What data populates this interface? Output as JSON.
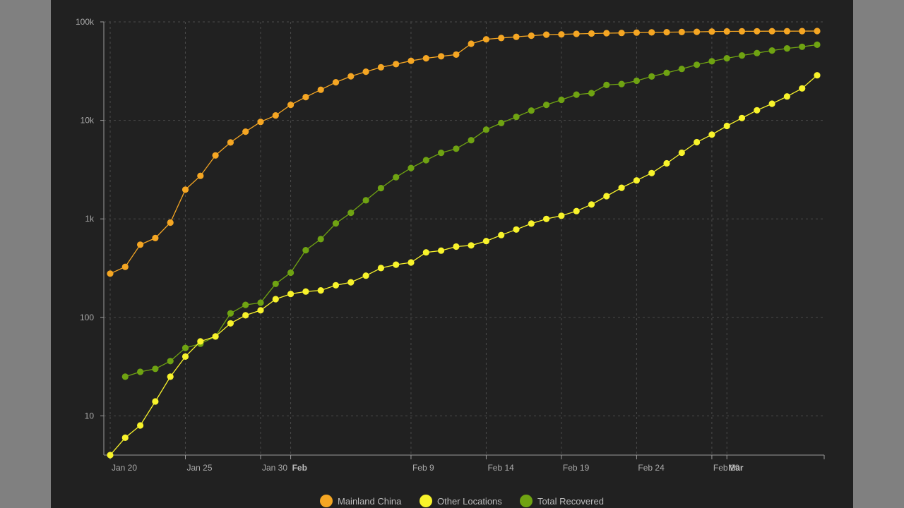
{
  "chart_data": {
    "type": "line",
    "title": "",
    "xlabel": "",
    "ylabel": "",
    "y_scale": "log",
    "ylim": [
      4,
      100000
    ],
    "grid": true,
    "legend_position": "bottom-center",
    "x_start": "2020-01-20",
    "x_end": "2020-03-07",
    "y_ticks": [
      {
        "value": 10,
        "label": "10"
      },
      {
        "value": 100,
        "label": "100"
      },
      {
        "value": 1000,
        "label": "1k"
      },
      {
        "value": 10000,
        "label": "10k"
      },
      {
        "value": 100000,
        "label": "100k"
      }
    ],
    "x_ticks": [
      {
        "date": "2020-01-20",
        "label": "Jan 20",
        "bold": false
      },
      {
        "date": "2020-01-25",
        "label": "Jan 25",
        "bold": false
      },
      {
        "date": "2020-01-30",
        "label": "Jan 30",
        "bold": false
      },
      {
        "date": "2020-02-01",
        "label": "Feb",
        "bold": true
      },
      {
        "date": "2020-02-09",
        "label": "Feb 9",
        "bold": false
      },
      {
        "date": "2020-02-14",
        "label": "Feb 14",
        "bold": false
      },
      {
        "date": "2020-02-19",
        "label": "Feb 19",
        "bold": false
      },
      {
        "date": "2020-02-24",
        "label": "Feb 24",
        "bold": false
      },
      {
        "date": "2020-02-29",
        "label": "Feb 29",
        "bold": false
      },
      {
        "date": "2020-03-01",
        "label": "Mar",
        "bold": true
      }
    ],
    "series": [
      {
        "name": "Mainland China",
        "color": "#f5a623",
        "dates": [
          "2020-01-20",
          "2020-01-21",
          "2020-01-22",
          "2020-01-23",
          "2020-01-24",
          "2020-01-25",
          "2020-01-26",
          "2020-01-27",
          "2020-01-28",
          "2020-01-29",
          "2020-01-30",
          "2020-01-31",
          "2020-02-01",
          "2020-02-02",
          "2020-02-03",
          "2020-02-04",
          "2020-02-05",
          "2020-02-06",
          "2020-02-07",
          "2020-02-08",
          "2020-02-09",
          "2020-02-10",
          "2020-02-11",
          "2020-02-12",
          "2020-02-13",
          "2020-02-14",
          "2020-02-15",
          "2020-02-16",
          "2020-02-17",
          "2020-02-18",
          "2020-02-19",
          "2020-02-20",
          "2020-02-21",
          "2020-02-22",
          "2020-02-23",
          "2020-02-24",
          "2020-02-25",
          "2020-02-26",
          "2020-02-27",
          "2020-02-28",
          "2020-02-29",
          "2020-03-01",
          "2020-03-02",
          "2020-03-03",
          "2020-03-04",
          "2020-03-05",
          "2020-03-06",
          "2020-03-07"
        ],
        "values": [
          278,
          326,
          547,
          639,
          916,
          1979,
          2737,
          4409,
          5970,
          7678,
          9658,
          11221,
          14375,
          17238,
          20471,
          24363,
          28060,
          31211,
          34598,
          37251,
          40235,
          42708,
          44730,
          46550,
          60000,
          66500,
          68500,
          70500,
          72400,
          74200,
          74700,
          75500,
          76200,
          76800,
          77200,
          77800,
          78200,
          78600,
          78900,
          79300,
          79800,
          80100,
          80200,
          80300,
          80400,
          80500,
          80600,
          80700
        ]
      },
      {
        "name": "Other Locations",
        "color": "#f8f32b",
        "dates": [
          "2020-01-20",
          "2020-01-21",
          "2020-01-22",
          "2020-01-23",
          "2020-01-24",
          "2020-01-25",
          "2020-01-26",
          "2020-01-27",
          "2020-01-28",
          "2020-01-29",
          "2020-01-30",
          "2020-01-31",
          "2020-02-01",
          "2020-02-02",
          "2020-02-03",
          "2020-02-04",
          "2020-02-05",
          "2020-02-06",
          "2020-02-07",
          "2020-02-08",
          "2020-02-09",
          "2020-02-10",
          "2020-02-11",
          "2020-02-12",
          "2020-02-13",
          "2020-02-14",
          "2020-02-15",
          "2020-02-16",
          "2020-02-17",
          "2020-02-18",
          "2020-02-19",
          "2020-02-20",
          "2020-02-21",
          "2020-02-22",
          "2020-02-23",
          "2020-02-24",
          "2020-02-25",
          "2020-02-26",
          "2020-02-27",
          "2020-02-28",
          "2020-02-29",
          "2020-03-01",
          "2020-03-02",
          "2020-03-03",
          "2020-03-04",
          "2020-03-05",
          "2020-03-06",
          "2020-03-07"
        ],
        "values": [
          4,
          6,
          8,
          14,
          25,
          40,
          57,
          64,
          87,
          105,
          118,
          153,
          173,
          183,
          188,
          212,
          227,
          265,
          317,
          343,
          361,
          457,
          476,
          523,
          538,
          595,
          685,
          780,
          896,
          999,
          1076,
          1200,
          1400,
          1700,
          2069,
          2459,
          2918,
          3664,
          4691,
          6009,
          7169,
          8774,
          10566,
          12668,
          14753,
          17481,
          21110,
          28674
        ]
      },
      {
        "name": "Total Recovered",
        "color": "#6fa312",
        "dates": [
          "2020-01-21",
          "2020-01-22",
          "2020-01-23",
          "2020-01-24",
          "2020-01-25",
          "2020-01-26",
          "2020-01-27",
          "2020-01-28",
          "2020-01-29",
          "2020-01-30",
          "2020-01-31",
          "2020-02-01",
          "2020-02-02",
          "2020-02-03",
          "2020-02-04",
          "2020-02-05",
          "2020-02-06",
          "2020-02-07",
          "2020-02-08",
          "2020-02-09",
          "2020-02-10",
          "2020-02-11",
          "2020-02-12",
          "2020-02-13",
          "2020-02-14",
          "2020-02-15",
          "2020-02-16",
          "2020-02-17",
          "2020-02-18",
          "2020-02-19",
          "2020-02-20",
          "2020-02-21",
          "2020-02-22",
          "2020-02-23",
          "2020-02-24",
          "2020-02-25",
          "2020-02-26",
          "2020-02-27",
          "2020-02-28",
          "2020-02-29",
          "2020-03-01",
          "2020-03-02",
          "2020-03-03",
          "2020-03-04",
          "2020-03-05",
          "2020-03-06",
          "2020-03-07"
        ],
        "values": [
          25,
          28,
          30,
          36,
          49,
          54,
          64,
          110,
          134,
          141,
          219,
          284,
          481,
          623,
          900,
          1152,
          1543,
          2054,
          2649,
          3284,
          3946,
          4683,
          5150,
          6295,
          8058,
          9395,
          10865,
          12583,
          14376,
          16155,
          18264,
          18890,
          22886,
          23394,
          25227,
          27905,
          30384,
          33277,
          36711,
          39782,
          42716,
          45602,
          48228,
          51170,
          53796,
          55865,
          58600
        ]
      }
    ]
  }
}
